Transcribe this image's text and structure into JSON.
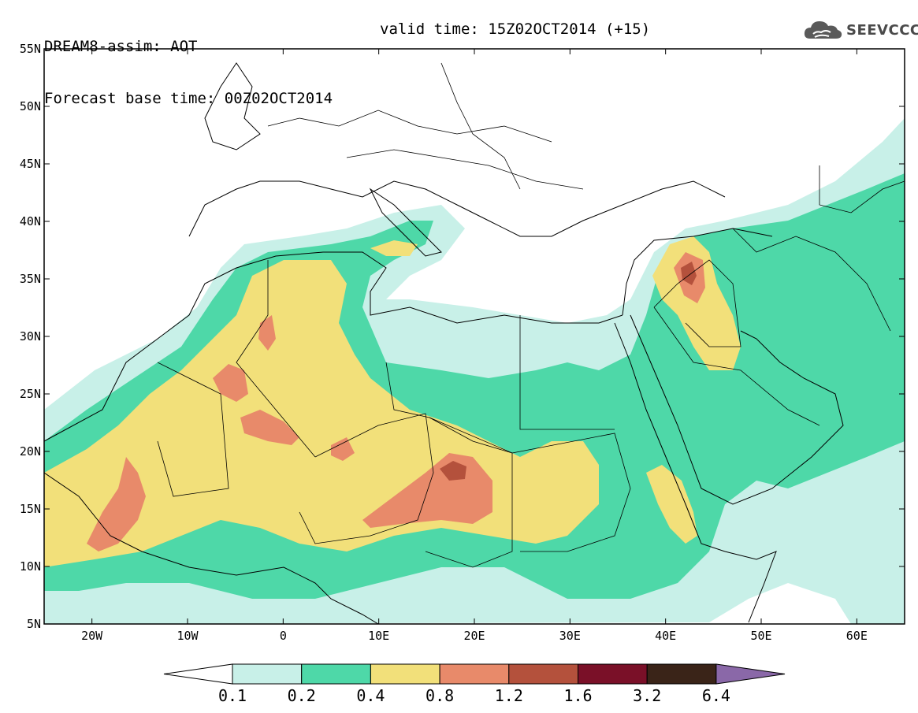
{
  "header": {
    "title": "DREAM8-assim: AOT",
    "base_time": "Forecast base time: 00Z02OCT2014",
    "valid_time": "valid time: 15Z02OCT2014 (+15)"
  },
  "logo": {
    "text": "SEEVCCC",
    "icon": "cloud-icon"
  },
  "map": {
    "lon_range": [
      -25,
      65
    ],
    "lat_range": [
      5,
      55
    ],
    "lat_ticks": [
      {
        "value": 55,
        "label": "55N"
      },
      {
        "value": 50,
        "label": "50N"
      },
      {
        "value": 45,
        "label": "45N"
      },
      {
        "value": 40,
        "label": "40N"
      },
      {
        "value": 35,
        "label": "35N"
      },
      {
        "value": 30,
        "label": "30N"
      },
      {
        "value": 25,
        "label": "25N"
      },
      {
        "value": 20,
        "label": "20N"
      },
      {
        "value": 15,
        "label": "15N"
      },
      {
        "value": 10,
        "label": "10N"
      },
      {
        "value": 5,
        "label": "5N"
      }
    ],
    "lon_ticks": [
      {
        "value": -20,
        "label": "20W"
      },
      {
        "value": -10,
        "label": "10W"
      },
      {
        "value": 0,
        "label": "0"
      },
      {
        "value": 10,
        "label": "10E"
      },
      {
        "value": 20,
        "label": "20E"
      },
      {
        "value": 30,
        "label": "30E"
      },
      {
        "value": 40,
        "label": "40E"
      },
      {
        "value": 50,
        "label": "50E"
      },
      {
        "value": 60,
        "label": "60E"
      }
    ]
  },
  "colorbar": {
    "levels": [
      "0.1",
      "0.2",
      "0.4",
      "0.8",
      "1.2",
      "1.6",
      "3.2",
      "6.4"
    ],
    "colors": [
      "#c8f0e8",
      "#4ed8a8",
      "#f2e07a",
      "#e88a6a",
      "#b4513c",
      "#7a1028",
      "#3a2418"
    ],
    "below_color": "#ffffff",
    "above_color": "#8a68a8"
  }
}
